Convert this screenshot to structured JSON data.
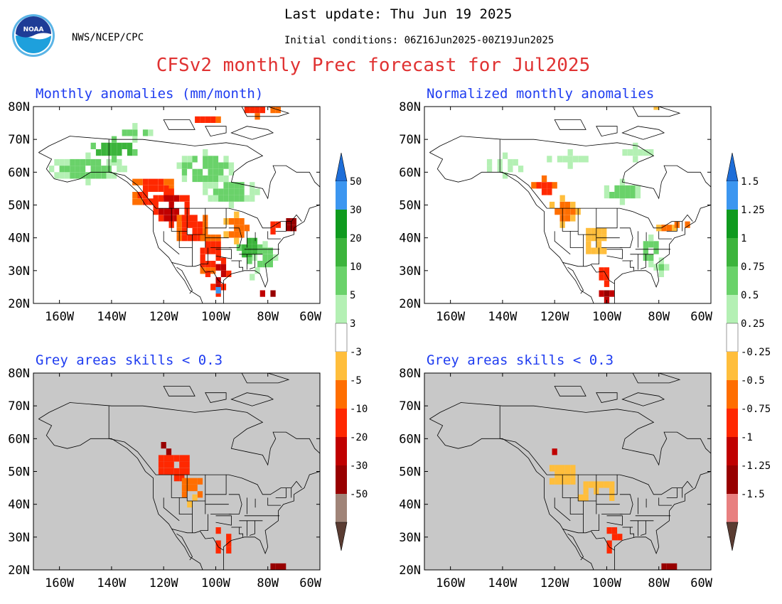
{
  "header": {
    "last_update": "Last update: Thu Jun 19 2025",
    "org": "NWS/NCEP/CPC",
    "initial_conditions": "Initial conditions: 06Z16Jun2025-00Z19Jun2025",
    "main_title": "CFSv2 monthly Prec forecast for Jul2025",
    "logo_text": "NOAA"
  },
  "panels": [
    {
      "id": "anom",
      "title": "Monthly anomalies (mm/month)"
    },
    {
      "id": "norm",
      "title": "Normalized monthly anomalies"
    },
    {
      "id": "anom_skill",
      "title": "Grey areas skills < 0.3"
    },
    {
      "id": "norm_skill",
      "title": "Grey areas skills < 0.3"
    }
  ],
  "axes": {
    "lat_labels": [
      "80N",
      "70N",
      "60N",
      "50N",
      "40N",
      "30N",
      "20N"
    ],
    "lon_labels": [
      "160W",
      "140W",
      "120W",
      "100W",
      "80W",
      "60W"
    ]
  },
  "colorbars": {
    "anom": {
      "colors": [
        "#1e6ed8",
        "#3c96f0",
        "#0f9a1e",
        "#3cb43c",
        "#6ad26a",
        "#b4f0b4",
        "#ffffff",
        "#ffbe3c",
        "#ff6e00",
        "#ff2800",
        "#c00000",
        "#980000",
        "#a08478",
        "#5a3c32"
      ],
      "labels": [
        "50",
        "30",
        "20",
        "10",
        "5",
        "3",
        "-3",
        "-5",
        "-10",
        "-20",
        "-30",
        "-50"
      ]
    },
    "norm": {
      "colors": [
        "#1e6ed8",
        "#3c96f0",
        "#0f9a1e",
        "#3cb43c",
        "#6ad26a",
        "#b4f0b4",
        "#ffffff",
        "#ffbe3c",
        "#ff6e00",
        "#ff2800",
        "#c00000",
        "#980000",
        "#e88080",
        "#5a3c32"
      ],
      "labels": [
        "1.5",
        "1.25",
        "1",
        "0.75",
        "0.5",
        "0.25",
        "-0.25",
        "-0.5",
        "-0.75",
        "-1",
        "-1.25",
        "-1.5"
      ]
    }
  },
  "colors": {
    "header_text": "#000000",
    "main_title": "#e03232",
    "panel_title": "#1e3cf0",
    "skill_grey": "#c8c8c8",
    "map_line": "#000000"
  }
}
